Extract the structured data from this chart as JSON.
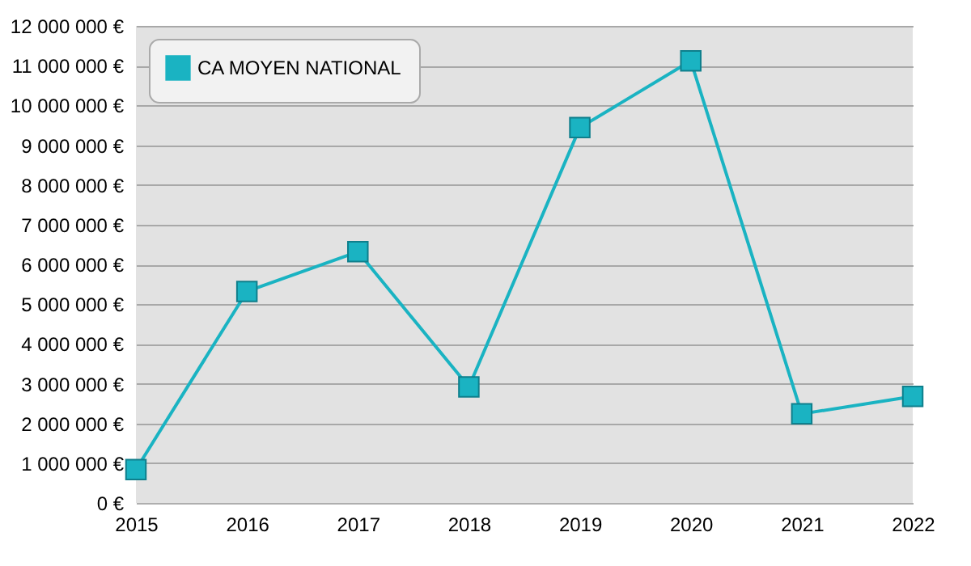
{
  "chart_data": {
    "type": "line",
    "x": [
      2015,
      2016,
      2017,
      2018,
      2019,
      2020,
      2021,
      2022
    ],
    "series": [
      {
        "name": "CA MOYEN NATIONAL",
        "color": "#1ab3c2",
        "values": [
          840000,
          5320000,
          6320000,
          2920000,
          9440000,
          11120000,
          2240000,
          2680000
        ]
      }
    ],
    "xlim": [
      2015,
      2022
    ],
    "xticks": [
      2015,
      2016,
      2017,
      2018,
      2019,
      2020,
      2021,
      2022
    ],
    "ylim": [
      0,
      12000000
    ],
    "yticks": [
      {
        "value": 0,
        "label": "0 €"
      },
      {
        "value": 1000000,
        "label": "1 000 000 €"
      },
      {
        "value": 2000000,
        "label": "2 000 000 €"
      },
      {
        "value": 3000000,
        "label": "3 000 000 €"
      },
      {
        "value": 4000000,
        "label": "4 000 000 €"
      },
      {
        "value": 5000000,
        "label": "5 000 000 €"
      },
      {
        "value": 6000000,
        "label": "6 000 000 €"
      },
      {
        "value": 7000000,
        "label": "7 000 000 €"
      },
      {
        "value": 8000000,
        "label": "8 000 000 €"
      },
      {
        "value": 9000000,
        "label": "9 000 000 €"
      },
      {
        "value": 10000000,
        "label": "10 000 000 €"
      },
      {
        "value": 11000000,
        "label": "11 000 000 €"
      },
      {
        "value": 12000000,
        "label": "12 000 000 €"
      }
    ],
    "grid": "y",
    "legend": "top left",
    "marker": "square",
    "line_style": "solid"
  }
}
